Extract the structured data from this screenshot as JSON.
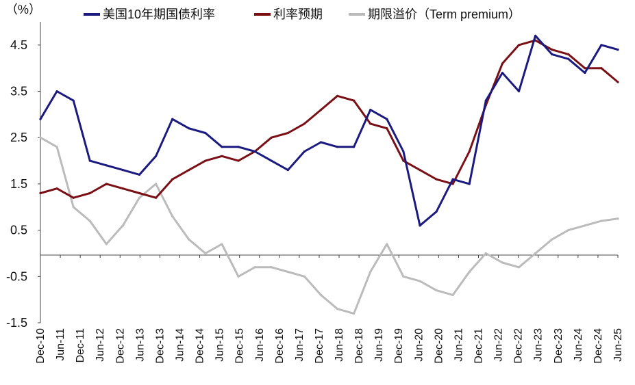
{
  "chart_data": {
    "type": "line",
    "title": "",
    "unit_label": "（%）",
    "xlabel": "",
    "ylabel": "",
    "ylim": [
      -1.5,
      5.0
    ],
    "grid": false,
    "legend_position": "top",
    "y_ticks": [
      {
        "label": "4.5",
        "value": 4.5,
        "color": "#000000"
      },
      {
        "label": "3.5",
        "value": 3.5,
        "color": "#000000"
      },
      {
        "label": "2.5",
        "value": 2.5,
        "color": "#000000"
      },
      {
        "label": "1.5",
        "value": 1.5,
        "color": "#000000"
      },
      {
        "label": "0.5",
        "value": 0.5,
        "color": "#000000"
      },
      {
        "label": "-0.5",
        "value": -0.5,
        "color": "#d40000"
      },
      {
        "label": "-1.5",
        "value": -1.5,
        "color": "#d40000"
      }
    ],
    "x_tick_labels": [
      "Dec-10",
      "Jun-11",
      "Dec-11",
      "Jun-12",
      "Dec-12",
      "Jun-13",
      "Dec-13",
      "Jun-14",
      "Dec-14",
      "Jun-15",
      "Dec-15",
      "Jun-16",
      "Dec-16",
      "Jun-17",
      "Dec-17",
      "Jun-18",
      "Dec-18",
      "Jun-19",
      "Dec-19",
      "Jun-20",
      "Dec-20",
      "Jun-21",
      "Dec-21",
      "Jun-22",
      "Dec-22",
      "Jun-23",
      "Dec-23",
      "Jun-24",
      "Dec-24",
      "Jun-25"
    ],
    "series": [
      {
        "name": "美国10年期国债利率",
        "color": "#1a1a80",
        "values": [
          2.9,
          3.5,
          3.3,
          2.0,
          1.9,
          1.8,
          1.7,
          2.1,
          2.9,
          2.7,
          2.6,
          2.3,
          2.3,
          2.2,
          2.0,
          1.8,
          2.2,
          2.4,
          2.3,
          2.3,
          3.1,
          2.9,
          2.2,
          0.6,
          0.9,
          1.6,
          1.5,
          3.3,
          3.9,
          3.5,
          4.7,
          4.3,
          4.2,
          3.9,
          4.5,
          4.4
        ]
      },
      {
        "name": "利率预期",
        "color": "#7a1015",
        "values": [
          1.3,
          1.4,
          1.2,
          1.3,
          1.5,
          1.4,
          1.3,
          1.2,
          1.6,
          1.8,
          2.0,
          2.1,
          2.0,
          2.2,
          2.5,
          2.6,
          2.8,
          3.1,
          3.4,
          3.3,
          2.8,
          2.7,
          2.0,
          1.8,
          1.6,
          1.5,
          2.2,
          3.2,
          4.1,
          4.5,
          4.6,
          4.4,
          4.3,
          4.0,
          4.0,
          3.7
        ]
      },
      {
        "name": "期限溢价（Term premium）",
        "color": "#bbbbbb",
        "values": [
          2.5,
          2.3,
          1.0,
          0.7,
          0.2,
          0.6,
          1.2,
          1.5,
          0.8,
          0.3,
          0.0,
          0.2,
          -0.5,
          -0.3,
          -0.3,
          -0.4,
          -0.5,
          -0.9,
          -1.2,
          -1.3,
          -0.4,
          0.2,
          -0.5,
          -0.6,
          -0.8,
          -0.9,
          -0.4,
          0.0,
          -0.2,
          -0.3,
          0.0,
          0.3,
          0.5,
          0.6,
          0.7,
          0.75
        ]
      }
    ]
  }
}
